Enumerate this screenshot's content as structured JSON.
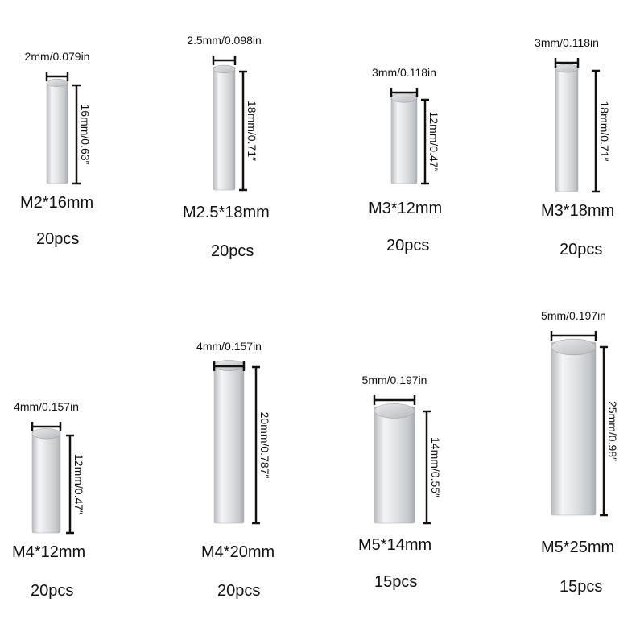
{
  "items": [
    {
      "diameter": "2mm/0.079in",
      "length": "16mm/0.63″",
      "name": "M2*16mm",
      "count": "20pcs"
    },
    {
      "diameter": "2.5mm/0.098in",
      "length": "18mm/0.71″",
      "name": "M2.5*18mm",
      "count": "20pcs"
    },
    {
      "diameter": "3mm/0.118in",
      "length": "12mm/0.47″",
      "name": "M3*12mm",
      "count": "20pcs"
    },
    {
      "diameter": "3mm/0.118in",
      "length": "18mm/0.71″",
      "name": "M3*18mm",
      "count": "20pcs"
    },
    {
      "diameter": "4mm/0.157in",
      "length": "12mm/0.47″",
      "name": "M4*12mm",
      "count": "20pcs"
    },
    {
      "diameter": "4mm/0.157in",
      "length": "20mm/0.787″",
      "name": "M4*20mm",
      "count": "20pcs"
    },
    {
      "diameter": "5mm/0.197in",
      "length": "14mm/0.55″",
      "name": "M5*14mm",
      "count": "15pcs"
    },
    {
      "diameter": "5mm/0.197in",
      "length": "25mm/0.98″",
      "name": "M5*25mm",
      "count": "15pcs"
    }
  ]
}
